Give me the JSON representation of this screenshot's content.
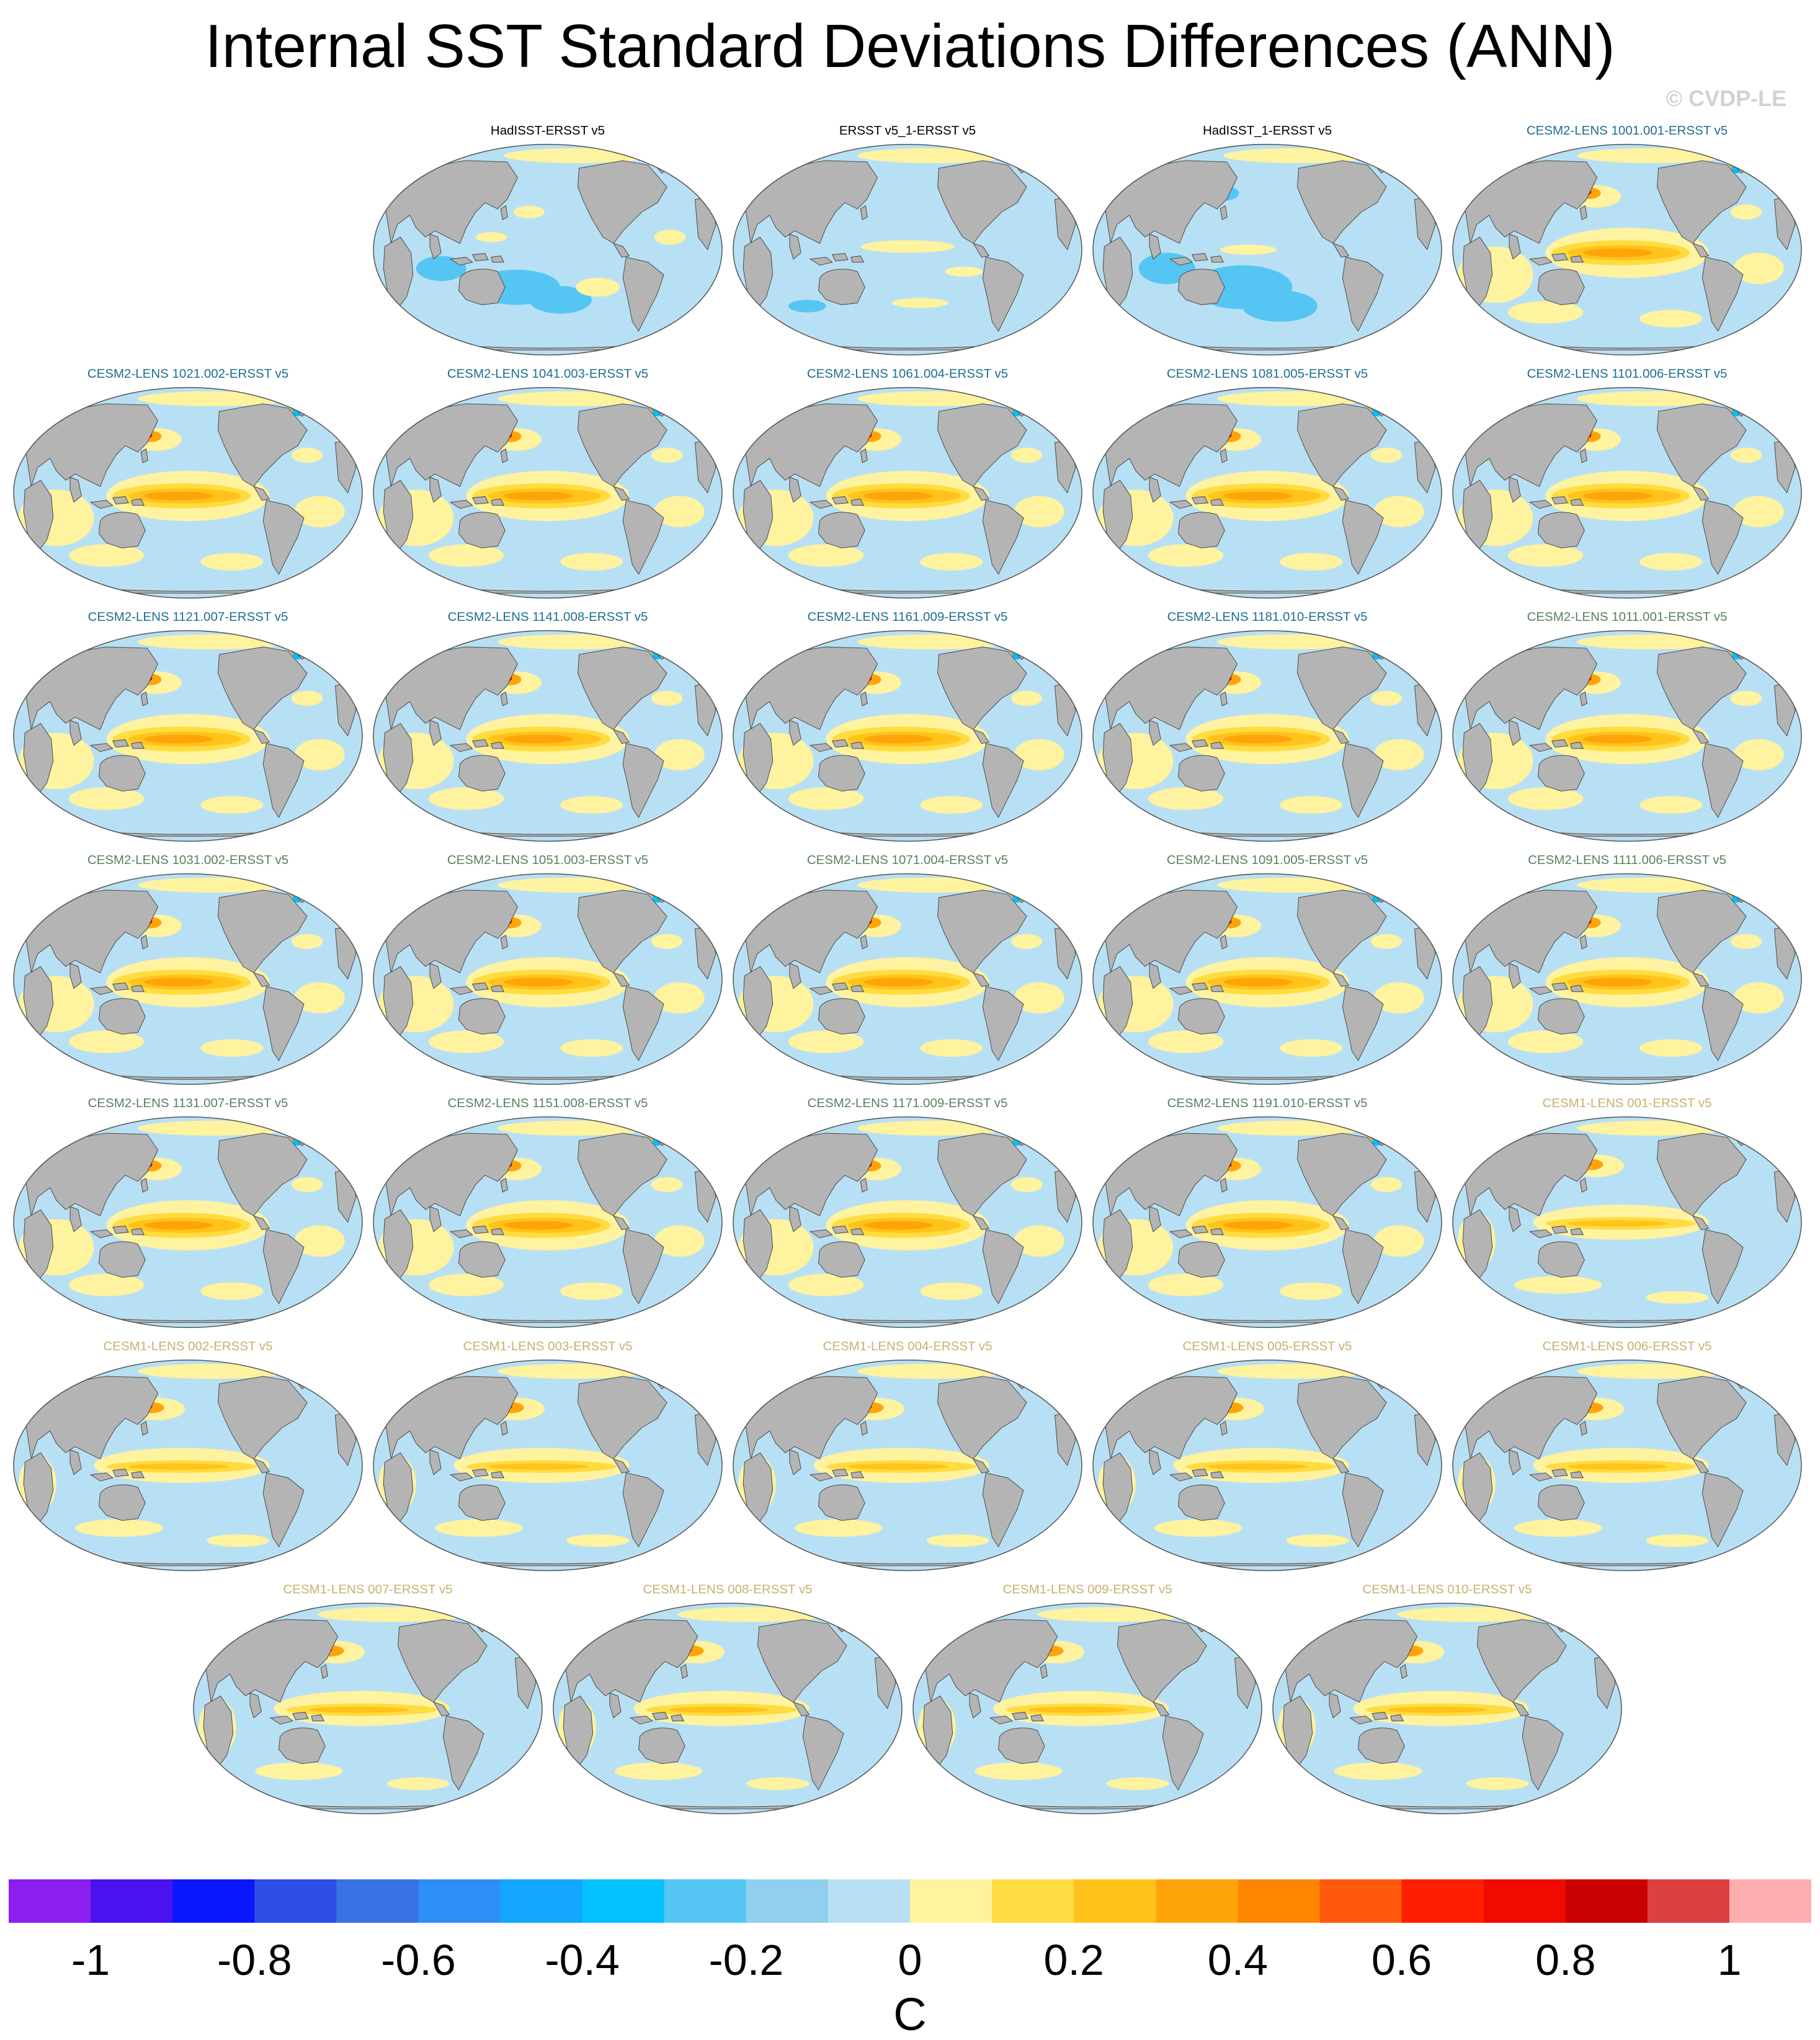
{
  "title": "Internal SST Standard Deviations Differences (ANN)",
  "copyright": "© CVDP-LE",
  "colors": {
    "land": "#b4b4b4",
    "land_edge": "#4a4a4a",
    "ocean_default": "#bfe0f3",
    "title_obs": "#000000",
    "title_cesm2_a": "#1f6e8f",
    "title_cesm2_b": "#5b8062",
    "title_cesm1": "#c9b06f"
  },
  "panels": [
    {
      "title": "HadISST-ERSST v5",
      "group": "obs",
      "pattern": "obs1"
    },
    {
      "title": "ERSST v5_1-ERSST v5",
      "group": "obs",
      "pattern": "obs2"
    },
    {
      "title": "HadISST_1-ERSST v5",
      "group": "obs",
      "pattern": "obs3"
    },
    {
      "title": "CESM2-LENS 1001.001-ERSST v5",
      "group": "cesm2_a",
      "pattern": "cesm2"
    },
    {
      "title": "CESM2-LENS 1021.002-ERSST v5",
      "group": "cesm2_a",
      "pattern": "cesm2"
    },
    {
      "title": "CESM2-LENS 1041.003-ERSST v5",
      "group": "cesm2_a",
      "pattern": "cesm2"
    },
    {
      "title": "CESM2-LENS 1061.004-ERSST v5",
      "group": "cesm2_a",
      "pattern": "cesm2"
    },
    {
      "title": "CESM2-LENS 1081.005-ERSST v5",
      "group": "cesm2_a",
      "pattern": "cesm2"
    },
    {
      "title": "CESM2-LENS 1101.006-ERSST v5",
      "group": "cesm2_a",
      "pattern": "cesm2"
    },
    {
      "title": "CESM2-LENS 1121.007-ERSST v5",
      "group": "cesm2_a",
      "pattern": "cesm2"
    },
    {
      "title": "CESM2-LENS 1141.008-ERSST v5",
      "group": "cesm2_a",
      "pattern": "cesm2"
    },
    {
      "title": "CESM2-LENS 1161.009-ERSST v5",
      "group": "cesm2_a",
      "pattern": "cesm2"
    },
    {
      "title": "CESM2-LENS 1181.010-ERSST v5",
      "group": "cesm2_a",
      "pattern": "cesm2"
    },
    {
      "title": "CESM2-LENS 1011.001-ERSST v5",
      "group": "cesm2_b",
      "pattern": "cesm2"
    },
    {
      "title": "CESM2-LENS 1031.002-ERSST v5",
      "group": "cesm2_b",
      "pattern": "cesm2"
    },
    {
      "title": "CESM2-LENS 1051.003-ERSST v5",
      "group": "cesm2_b",
      "pattern": "cesm2"
    },
    {
      "title": "CESM2-LENS 1071.004-ERSST v5",
      "group": "cesm2_b",
      "pattern": "cesm2"
    },
    {
      "title": "CESM2-LENS 1091.005-ERSST v5",
      "group": "cesm2_b",
      "pattern": "cesm2"
    },
    {
      "title": "CESM2-LENS 1111.006-ERSST v5",
      "group": "cesm2_b",
      "pattern": "cesm2"
    },
    {
      "title": "CESM2-LENS 1131.007-ERSST v5",
      "group": "cesm2_b",
      "pattern": "cesm2"
    },
    {
      "title": "CESM2-LENS 1151.008-ERSST v5",
      "group": "cesm2_b",
      "pattern": "cesm2"
    },
    {
      "title": "CESM2-LENS 1171.009-ERSST v5",
      "group": "cesm2_b",
      "pattern": "cesm2"
    },
    {
      "title": "CESM2-LENS 1191.010-ERSST v5",
      "group": "cesm2_b",
      "pattern": "cesm2"
    },
    {
      "title": "CESM1-LENS 001-ERSST v5",
      "group": "cesm1",
      "pattern": "cesm1"
    },
    {
      "title": "CESM1-LENS 002-ERSST v5",
      "group": "cesm1",
      "pattern": "cesm1"
    },
    {
      "title": "CESM1-LENS 003-ERSST v5",
      "group": "cesm1",
      "pattern": "cesm1"
    },
    {
      "title": "CESM1-LENS 004-ERSST v5",
      "group": "cesm1",
      "pattern": "cesm1"
    },
    {
      "title": "CESM1-LENS 005-ERSST v5",
      "group": "cesm1",
      "pattern": "cesm1"
    },
    {
      "title": "CESM1-LENS 006-ERSST v5",
      "group": "cesm1",
      "pattern": "cesm1"
    },
    {
      "title": "CESM1-LENS 007-ERSST v5",
      "group": "cesm1",
      "pattern": "cesm1"
    },
    {
      "title": "CESM1-LENS 008-ERSST v5",
      "group": "cesm1",
      "pattern": "cesm1"
    },
    {
      "title": "CESM1-LENS 009-ERSST v5",
      "group": "cesm1",
      "pattern": "cesm1"
    },
    {
      "title": "CESM1-LENS 010-ERSST v5",
      "group": "cesm1",
      "pattern": "cesm1"
    }
  ],
  "colorbar": {
    "colors": [
      "#8b1ff0",
      "#4a12f0",
      "#0a17ff",
      "#2e4fe6",
      "#3a72e6",
      "#2d8ef5",
      "#13a6ff",
      "#04c0ff",
      "#55c6f3",
      "#92cfee",
      "#b8e0f4",
      "#fff3a0",
      "#ffdc3f",
      "#ffc31c",
      "#ffa408",
      "#ff8400",
      "#ff5a0c",
      "#ff1e00",
      "#f10a00",
      "#c80000",
      "#dc4040",
      "#ffaeb0"
    ],
    "labels": [
      "-1",
      "-0.8",
      "-0.6",
      "-0.4",
      "-0.2",
      "0",
      "0.2",
      "0.4",
      "0.6",
      "0.8",
      "1"
    ],
    "units": "C"
  }
}
